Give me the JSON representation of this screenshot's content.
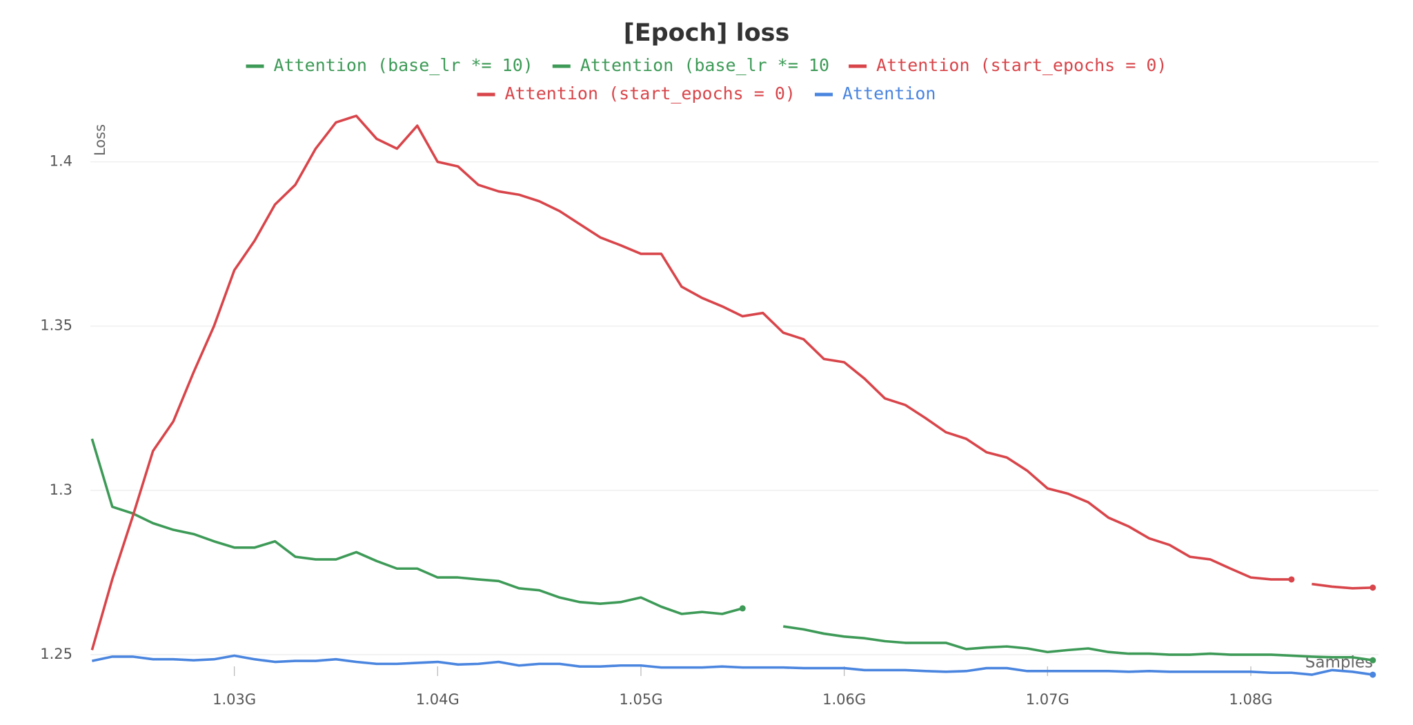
{
  "chart_data": {
    "type": "line",
    "title": "[Epoch] loss",
    "y_label": "Loss",
    "x_label": "Samples",
    "grid": true,
    "x": [
      1023000000,
      1024000000,
      1025000000,
      1026000000,
      1027000000,
      1028000000,
      1029000000,
      1030000000,
      1031000000,
      1032000000,
      1033000000,
      1034000000,
      1035000000,
      1036000000,
      1037000000,
      1038000000,
      1039000000,
      1040000000,
      1041000000,
      1042000000,
      1043000000,
      1044000000,
      1045000000,
      1046000000,
      1047000000,
      1048000000,
      1049000000,
      1050000000,
      1051000000,
      1052000000,
      1053000000,
      1054000000,
      1055000000,
      1056000000,
      1057000000,
      1058000000,
      1059000000,
      1060000000,
      1061000000,
      1062000000,
      1063000000,
      1064000000,
      1065000000,
      1066000000,
      1067000000,
      1068000000,
      1069000000,
      1070000000,
      1071000000,
      1072000000,
      1073000000,
      1074000000,
      1075000000,
      1076000000,
      1077000000,
      1078000000,
      1079000000,
      1080000000,
      1081000000,
      1082000000,
      1083000000,
      1084000000,
      1085000000,
      1086000000
    ],
    "xlim": [
      1022920000,
      1086280000
    ],
    "xticks": [
      {
        "value": 1030000000,
        "label": "1.03G"
      },
      {
        "value": 1040000000,
        "label": "1.04G"
      },
      {
        "value": 1050000000,
        "label": "1.05G"
      },
      {
        "value": 1060000000,
        "label": "1.06G"
      },
      {
        "value": 1070000000,
        "label": "1.07G"
      },
      {
        "value": 1080000000,
        "label": "1.08G"
      }
    ],
    "ylim": [
      1.2435,
      1.4165
    ],
    "yticks": [
      1.25,
      1.3,
      1.35,
      1.4
    ],
    "series": [
      {
        "name": "Attention (base_lr *= 10)",
        "color": "#3d9a57",
        "values": [
          1.3157,
          1.295,
          1.293,
          1.29,
          1.288,
          1.2867,
          1.2845,
          1.2826,
          1.2826,
          1.2845,
          1.2798,
          1.279,
          1.279,
          1.2812,
          1.2785,
          1.2762,
          1.2762,
          1.2735,
          1.2735,
          1.2729,
          1.2724,
          1.2702,
          1.2696,
          1.2674,
          1.266,
          1.2655,
          1.266,
          1.2674,
          1.2646,
          1.2624,
          1.263,
          1.2624,
          1.2641,
          null,
          null,
          null,
          null,
          null,
          null,
          null,
          null,
          null,
          null,
          null,
          null,
          null,
          null,
          null,
          null,
          null,
          null,
          null,
          null,
          null,
          null,
          null,
          null,
          null,
          null,
          null,
          null,
          null,
          null,
          null
        ]
      },
      {
        "name": "Attention (base_lr *= 10",
        "color": "#3d9a57",
        "values": [
          null,
          null,
          null,
          null,
          null,
          null,
          null,
          null,
          null,
          null,
          null,
          null,
          null,
          null,
          null,
          null,
          null,
          null,
          null,
          null,
          null,
          null,
          null,
          null,
          null,
          null,
          null,
          null,
          null,
          null,
          null,
          null,
          null,
          null,
          1.2586,
          1.2577,
          1.2564,
          1.2555,
          1.255,
          1.2541,
          1.2536,
          1.2536,
          1.2536,
          1.2517,
          1.2522,
          1.2525,
          1.2519,
          1.2508,
          1.2514,
          1.2519,
          1.2508,
          1.2503,
          1.2503,
          1.25,
          1.25,
          1.2503,
          1.25,
          1.25,
          1.25,
          1.2497,
          1.2494,
          1.2492,
          1.2492,
          1.2483
        ]
      },
      {
        "name": "Attention (start_epochs = 0)",
        "color": "#d8454a",
        "values": [
          1.2514,
          1.273,
          1.292,
          1.312,
          1.321,
          1.336,
          1.35,
          1.367,
          1.376,
          1.387,
          1.393,
          1.404,
          1.412,
          1.414,
          1.407,
          1.404,
          1.411,
          1.4,
          1.3986,
          1.393,
          1.391,
          1.39,
          1.388,
          1.385,
          1.381,
          1.377,
          1.3746,
          1.372,
          1.372,
          1.362,
          1.3586,
          1.356,
          1.353,
          1.354,
          1.348,
          1.346,
          1.34,
          1.339,
          1.334,
          1.328,
          1.326,
          1.322,
          1.3177,
          1.3157,
          1.3116,
          1.31,
          1.306,
          1.3006,
          1.299,
          1.2964,
          1.2917,
          1.289,
          1.2854,
          1.2834,
          1.2798,
          1.279,
          1.2762,
          1.2735,
          1.2729,
          1.2729,
          null,
          null,
          null,
          null
        ]
      },
      {
        "name": "Attention (start_epochs = 0)",
        "color": "#d8454a",
        "values": [
          null,
          null,
          null,
          null,
          null,
          null,
          null,
          null,
          null,
          null,
          null,
          null,
          null,
          null,
          null,
          null,
          null,
          null,
          null,
          null,
          null,
          null,
          null,
          null,
          null,
          null,
          null,
          null,
          null,
          null,
          null,
          null,
          null,
          null,
          null,
          null,
          null,
          null,
          null,
          null,
          null,
          null,
          null,
          null,
          null,
          null,
          null,
          null,
          null,
          null,
          null,
          null,
          null,
          null,
          null,
          null,
          null,
          null,
          null,
          null,
          1.2715,
          1.2707,
          1.2702,
          1.2704
        ]
      },
      {
        "name": "Attention",
        "color": "#4a85df",
        "values": [
          1.2481,
          1.2494,
          1.2494,
          1.2486,
          1.2486,
          1.2483,
          1.2486,
          1.2497,
          1.2486,
          1.2478,
          1.2481,
          1.2481,
          1.2486,
          1.2478,
          1.2472,
          1.2472,
          1.2475,
          1.2478,
          1.247,
          1.2472,
          1.2478,
          1.2467,
          1.2472,
          1.2472,
          1.2464,
          1.2464,
          1.2467,
          1.2467,
          1.2461,
          1.2461,
          1.2461,
          1.2464,
          1.2461,
          1.2461,
          1.2461,
          1.2459,
          1.2459,
          1.2459,
          1.2453,
          1.2453,
          1.2453,
          1.245,
          1.2448,
          1.245,
          1.2459,
          1.2459,
          1.245,
          1.245,
          1.245,
          1.245,
          1.245,
          1.2448,
          1.245,
          1.2448,
          1.2448,
          1.2448,
          1.2448,
          1.2448,
          1.2445,
          1.2445,
          1.2439,
          1.2453,
          1.2448,
          1.2439
        ]
      }
    ]
  }
}
